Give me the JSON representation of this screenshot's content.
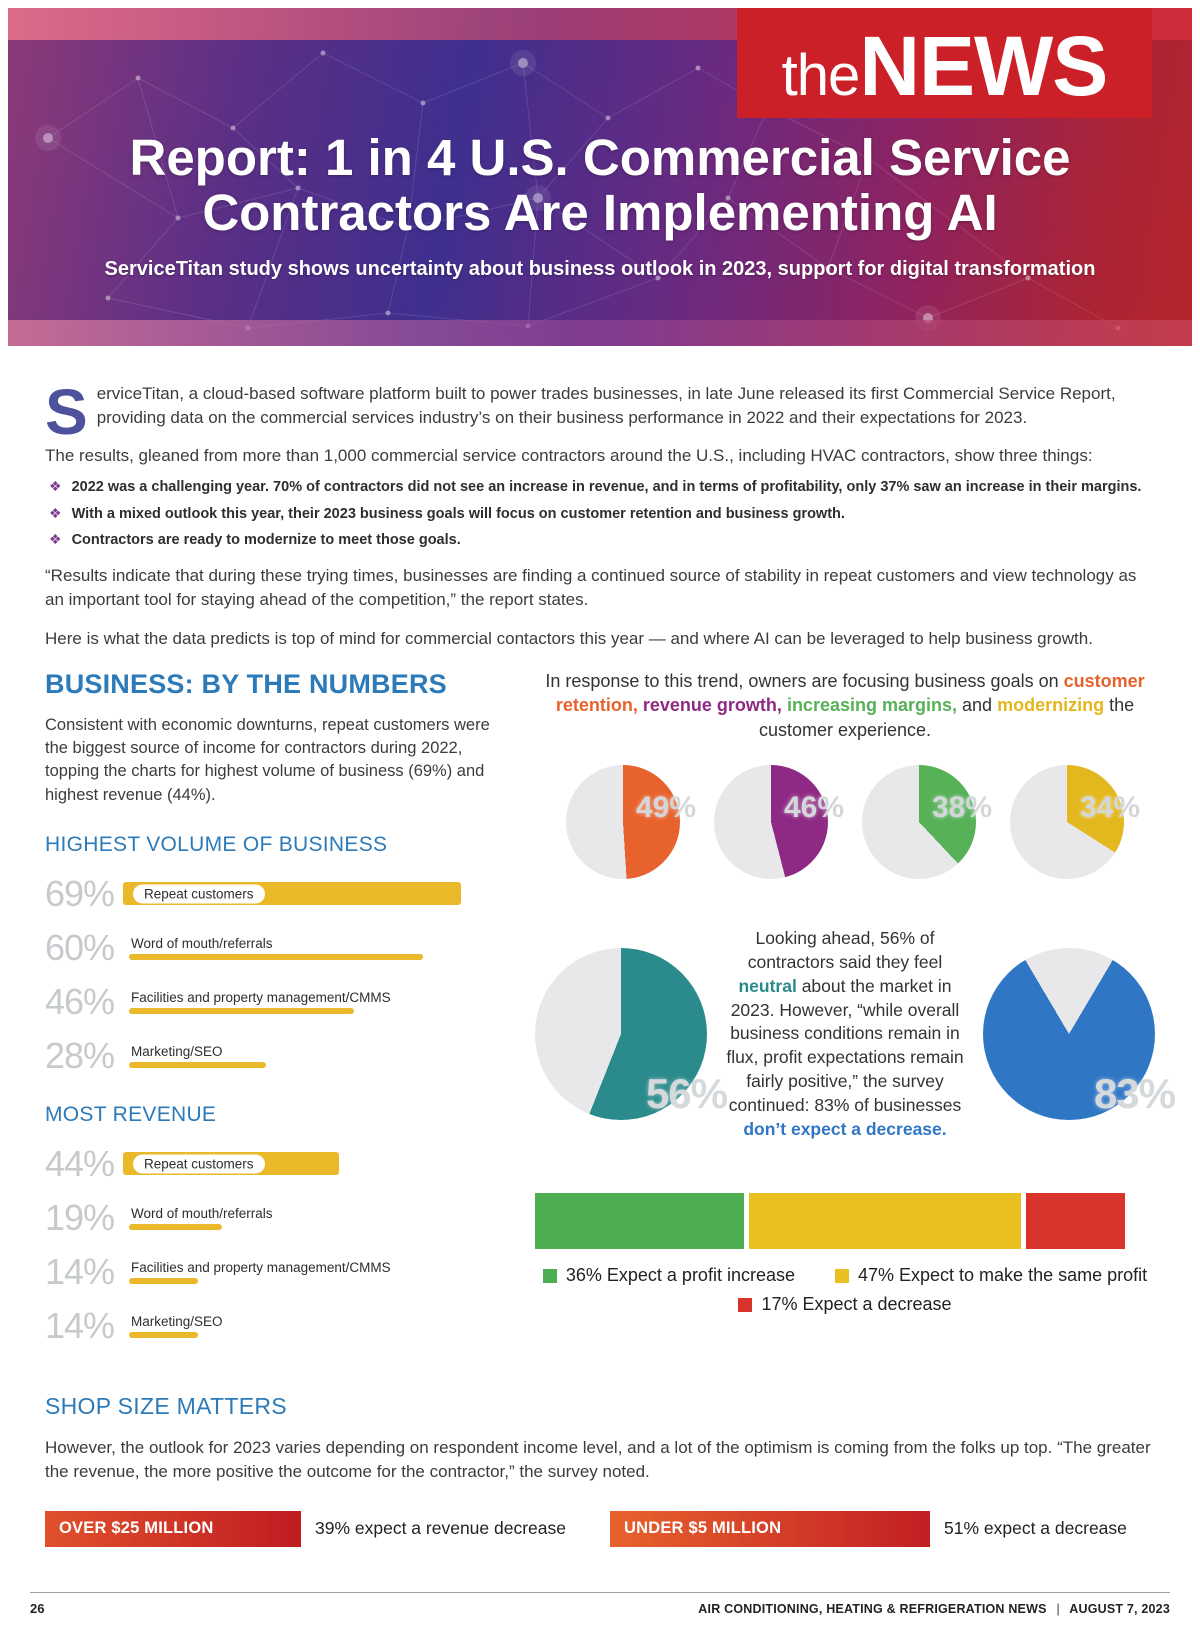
{
  "colors": {
    "accent_blue": "#2c7ab8",
    "bar_yellow": "#e9b929",
    "logo_red": "#cb2027",
    "badge_gradient_from": "#e0512b",
    "badge_gradient_to": "#bf1c22"
  },
  "header": {
    "logo_the": "the",
    "logo_news": "NEWS",
    "title_line1": "Report: 1 in 4 U.S. Commercial Service",
    "title_line2": "Contractors Are Implementing AI",
    "subtitle": "ServiceTitan study shows uncertainty about business outlook in 2023, support for digital transformation"
  },
  "intro": {
    "dropcap": "S",
    "p1": "erviceTitan, a cloud-based software platform built to power trades businesses, in late June released its first Commercial Service Report, providing data on the commercial services industry’s on their business performance in 2022 and their expectations for 2023.",
    "p2": "The results, gleaned from more than 1,000 commercial service contractors around the U.S., including HVAC contractors, show three things:",
    "bullet_icon": "❖",
    "bullets": [
      "2022 was a challenging year. 70% of contractors did not see an increase in revenue, and in terms of profitability, only 37% saw an increase in their margins.",
      "With a mixed outlook this year, their 2023 business goals will focus on customer retention and business growth.",
      "Contractors are ready to modernize to meet those goals."
    ],
    "quote": "“Results indicate that during these trying times, businesses are finding a continued source of stability in repeat customers and view technology as an important tool for staying ahead of the competition,” the report states.",
    "p3": "Here is what the data predicts is top of mind for commercial contactors this year — and where AI can be leveraged to help business growth."
  },
  "business": {
    "heading": "BUSINESS: BY THE NUMBERS",
    "intro": "Consistent with economic downturns, repeat customers were the biggest source of income for contractors during 2022, topping the charts for highest volume of business (69%) and highest revenue (44%).",
    "volume": {
      "heading": "HIGHEST VOLUME OF BUSINESS",
      "items": [
        {
          "pct": "69%",
          "value": 69,
          "label": "Repeat customers"
        },
        {
          "pct": "60%",
          "value": 60,
          "label": "Word of mouth/referrals"
        },
        {
          "pct": "46%",
          "value": 46,
          "label": "Facilities and property management/CMMS"
        },
        {
          "pct": "28%",
          "value": 28,
          "label": "Marketing/SEO"
        }
      ]
    },
    "revenue": {
      "heading": "MOST REVENUE",
      "items": [
        {
          "pct": "44%",
          "value": 44,
          "label": "Repeat customers"
        },
        {
          "pct": "19%",
          "value": 19,
          "label": "Word of mouth/referrals"
        },
        {
          "pct": "14%",
          "value": 14,
          "label": "Facilities and property management/CMMS"
        },
        {
          "pct": "14%",
          "value": 14,
          "label": "Marketing/SEO"
        }
      ]
    }
  },
  "goals": {
    "intro_pre": "In response to this trend, owners are focusing business goals on",
    "terms": [
      {
        "text": "customer retention,",
        "color": "#e8622d"
      },
      {
        "text": "revenue growth,",
        "color": "#8e2a84"
      },
      {
        "text": "increasing margins,",
        "color": "#56b157"
      },
      {
        "text": "modernizing",
        "color": "#e3b71e"
      }
    ],
    "and_word": "and",
    "intro_post": "the customer experience.",
    "pies": [
      {
        "pct": "49%",
        "value": 49,
        "color": "#e8622d",
        "label": "customer retention"
      },
      {
        "pct": "46%",
        "value": 46,
        "color": "#8e2a84",
        "label": "revenue growth"
      },
      {
        "pct": "38%",
        "value": 38,
        "color": "#56b157",
        "label": "increasing margins"
      },
      {
        "pct": "34%",
        "value": 34,
        "color": "#e3b71e",
        "label": "modernizing"
      }
    ]
  },
  "outlook": {
    "t1": "Looking ahead, 56% of contractors said they feel",
    "neutral": "neutral",
    "neutral_color": "#2a8a8c",
    "t2": "about the market in 2023. However, “while overall business conditions remain in flux, profit expectations remain fairly positive,” the survey continued: 83% of businesses",
    "highlight": "don’t expect a decrease.",
    "highlight_color": "#2f76c5",
    "pie_left": {
      "pct": "56%",
      "value": 56,
      "color": "#2a8a8c"
    },
    "pie_right": {
      "pct": "83%",
      "value": 83,
      "color": "#2f76c5"
    }
  },
  "profit": {
    "segments": [
      {
        "value": 36,
        "color": "#4cae50",
        "legend": "36% Expect a profit increase"
      },
      {
        "value": 47,
        "color": "#e8c020",
        "legend": "47% Expect to make the same profit"
      },
      {
        "value": 17,
        "color": "#d8342c",
        "legend": "17% Expect a decrease"
      }
    ]
  },
  "shop": {
    "heading": "SHOP SIZE MATTERS",
    "p1": "However, the outlook for 2023 varies depending on respondent income level, and a lot of the optimism is coming from the folks up top. “The greater the revenue, the more positive the outcome for the contractor,” the survey noted.",
    "rows": [
      {
        "badge": "OVER $25 MILLION",
        "text": "39% expect a revenue decrease"
      },
      {
        "badge": "UNDER $5 MILLION",
        "text": "51% expect a decrease"
      }
    ]
  },
  "footer": {
    "page_num": "26",
    "pub": "AIR CONDITIONING, HEATING & REFRIGERATION NEWS",
    "sep": "|",
    "date": "AUGUST 7, 2023"
  },
  "chart_data": [
    {
      "type": "bar",
      "title": "HIGHEST VOLUME OF BUSINESS",
      "categories": [
        "Repeat customers",
        "Word of mouth/referrals",
        "Facilities and property management/CMMS",
        "Marketing/SEO"
      ],
      "values": [
        69,
        60,
        46,
        28
      ],
      "unit": "%",
      "orientation": "horizontal"
    },
    {
      "type": "bar",
      "title": "MOST REVENUE",
      "categories": [
        "Repeat customers",
        "Word of mouth/referrals",
        "Facilities and property management/CMMS",
        "Marketing/SEO"
      ],
      "values": [
        44,
        19,
        14,
        14
      ],
      "unit": "%",
      "orientation": "horizontal"
    },
    {
      "type": "pie",
      "title": "2023 business goals focus",
      "categories": [
        "customer retention",
        "revenue growth",
        "increasing margins",
        "modernizing"
      ],
      "values": [
        49,
        46,
        38,
        34
      ],
      "unit": "%"
    },
    {
      "type": "pie",
      "title": "Feel neutral about the market in 2023",
      "categories": [
        "neutral"
      ],
      "values": [
        56
      ],
      "unit": "%"
    },
    {
      "type": "pie",
      "title": "Businesses that don't expect a decrease",
      "categories": [
        "don't expect a decrease"
      ],
      "values": [
        83
      ],
      "unit": "%"
    },
    {
      "type": "bar",
      "subtype": "stacked",
      "title": "2023 profit expectations",
      "categories": [
        "Expect a profit increase",
        "Expect to make the same profit",
        "Expect a decrease"
      ],
      "values": [
        36,
        47,
        17
      ],
      "unit": "%"
    },
    {
      "type": "table",
      "title": "Revenue outlook by shop size",
      "categories": [
        "OVER $25 MILLION",
        "UNDER $5 MILLION"
      ],
      "values": [
        39,
        51
      ],
      "unit": "% expect a decrease"
    }
  ]
}
